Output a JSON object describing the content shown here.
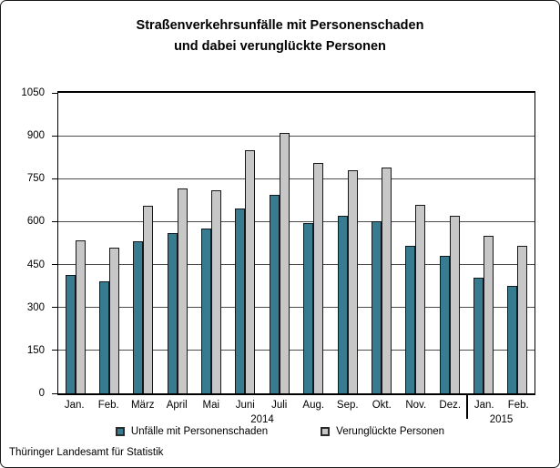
{
  "title": {
    "line1": "Straßenverkehrsunfälle mit Personenschaden",
    "line2": "und dabei verunglückte Personen"
  },
  "footer": "Thüringer Landesamt für Statistik",
  "colors": {
    "accidents_bar": "#377b91",
    "casualties_bar": "#c7c7c7",
    "bar_border": "#14181a",
    "gridline": "#4d4d4d"
  },
  "chart_data": {
    "type": "bar",
    "title": "Straßenverkehrsunfälle mit Personenschaden und dabei verunglückte Personen",
    "categories": [
      "Jan.",
      "Feb.",
      "März",
      "April",
      "Mai",
      "Juni",
      "Juli",
      "Aug.",
      "Sep.",
      "Okt.",
      "Nov.",
      "Dez.",
      "Jan.",
      "Feb."
    ],
    "year_groups": [
      {
        "label": "2014",
        "span": 12
      },
      {
        "label": "2015",
        "span": 2
      }
    ],
    "series": [
      {
        "name": "Unfälle mit Personenschaden",
        "color": "#377b91",
        "values": [
          415,
          390,
          530,
          560,
          575,
          645,
          695,
          595,
          620,
          600,
          515,
          480,
          405,
          375
        ]
      },
      {
        "name": "Verunglückte Personen",
        "color": "#c7c7c7",
        "values": [
          535,
          510,
          655,
          715,
          710,
          850,
          910,
          805,
          780,
          790,
          660,
          620,
          550,
          515
        ]
      }
    ],
    "xlabel": "",
    "ylabel": "",
    "ylim": [
      0,
      1050
    ],
    "yticks": [
      0,
      150,
      300,
      450,
      600,
      750,
      900,
      1050
    ],
    "grid": true,
    "legend_position": "bottom"
  }
}
